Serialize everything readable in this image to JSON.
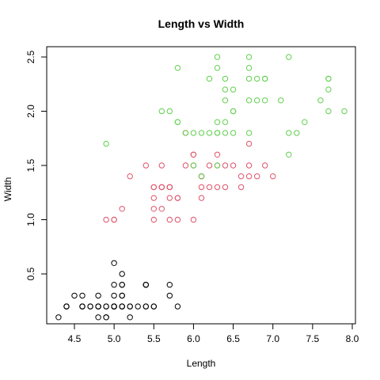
{
  "chart_data": {
    "type": "scatter",
    "title": "Length vs Width",
    "xlabel": "Length",
    "ylabel": "Width",
    "xlim": [
      4.3,
      7.9
    ],
    "ylim": [
      0.1,
      2.5
    ],
    "x_ticks": [
      "4.5",
      "5.0",
      "5.5",
      "6.0",
      "6.5",
      "7.0",
      "7.5",
      "8.0"
    ],
    "y_ticks": [
      "0.5",
      "1.0",
      "1.5",
      "2.0",
      "2.5"
    ],
    "grid": false,
    "marker": "open-circle",
    "series": [
      {
        "color": "#000000",
        "points": [
          [
            5.1,
            0.2
          ],
          [
            4.9,
            0.2
          ],
          [
            4.7,
            0.2
          ],
          [
            4.6,
            0.2
          ],
          [
            5.0,
            0.2
          ],
          [
            5.4,
            0.4
          ],
          [
            4.6,
            0.3
          ],
          [
            5.0,
            0.2
          ],
          [
            4.4,
            0.2
          ],
          [
            4.9,
            0.1
          ],
          [
            5.4,
            0.2
          ],
          [
            4.8,
            0.2
          ],
          [
            4.8,
            0.1
          ],
          [
            4.3,
            0.1
          ],
          [
            5.8,
            0.2
          ],
          [
            5.7,
            0.4
          ],
          [
            5.4,
            0.4
          ],
          [
            5.1,
            0.3
          ],
          [
            5.7,
            0.3
          ],
          [
            5.1,
            0.3
          ],
          [
            5.4,
            0.2
          ],
          [
            5.1,
            0.4
          ],
          [
            4.6,
            0.2
          ],
          [
            5.1,
            0.5
          ],
          [
            4.8,
            0.2
          ],
          [
            5.0,
            0.2
          ],
          [
            5.0,
            0.4
          ],
          [
            5.2,
            0.2
          ],
          [
            5.2,
            0.2
          ],
          [
            4.7,
            0.2
          ],
          [
            4.8,
            0.2
          ],
          [
            5.4,
            0.4
          ],
          [
            5.2,
            0.1
          ],
          [
            5.5,
            0.2
          ],
          [
            4.9,
            0.2
          ],
          [
            5.0,
            0.2
          ],
          [
            5.5,
            0.2
          ],
          [
            4.9,
            0.1
          ],
          [
            4.4,
            0.2
          ],
          [
            5.1,
            0.2
          ],
          [
            5.0,
            0.3
          ],
          [
            4.5,
            0.3
          ],
          [
            4.4,
            0.2
          ],
          [
            5.0,
            0.6
          ],
          [
            5.1,
            0.4
          ],
          [
            4.8,
            0.3
          ],
          [
            5.1,
            0.2
          ],
          [
            4.6,
            0.2
          ],
          [
            5.3,
            0.2
          ],
          [
            5.0,
            0.2
          ]
        ]
      },
      {
        "color": "#DF536B",
        "points": [
          [
            7.0,
            1.4
          ],
          [
            6.4,
            1.5
          ],
          [
            6.9,
            1.5
          ],
          [
            5.5,
            1.3
          ],
          [
            6.5,
            1.5
          ],
          [
            5.7,
            1.3
          ],
          [
            6.3,
            1.6
          ],
          [
            4.9,
            1.0
          ],
          [
            6.6,
            1.3
          ],
          [
            5.2,
            1.4
          ],
          [
            5.0,
            1.0
          ],
          [
            5.9,
            1.5
          ],
          [
            6.0,
            1.0
          ],
          [
            6.1,
            1.4
          ],
          [
            5.6,
            1.3
          ],
          [
            6.7,
            1.4
          ],
          [
            5.6,
            1.5
          ],
          [
            5.8,
            1.0
          ],
          [
            6.2,
            1.5
          ],
          [
            5.6,
            1.1
          ],
          [
            5.9,
            1.8
          ],
          [
            6.1,
            1.3
          ],
          [
            6.3,
            1.5
          ],
          [
            6.1,
            1.2
          ],
          [
            6.4,
            1.3
          ],
          [
            6.6,
            1.4
          ],
          [
            6.8,
            1.4
          ],
          [
            6.7,
            1.7
          ],
          [
            6.0,
            1.5
          ],
          [
            5.7,
            1.0
          ],
          [
            5.5,
            1.1
          ],
          [
            5.5,
            1.0
          ],
          [
            5.8,
            1.2
          ],
          [
            6.0,
            1.6
          ],
          [
            5.4,
            1.5
          ],
          [
            6.0,
            1.6
          ],
          [
            6.7,
            1.5
          ],
          [
            6.3,
            1.3
          ],
          [
            5.6,
            1.3
          ],
          [
            5.5,
            1.3
          ],
          [
            5.5,
            1.2
          ],
          [
            6.1,
            1.4
          ],
          [
            5.8,
            1.2
          ],
          [
            5.0,
            1.0
          ],
          [
            5.6,
            1.3
          ],
          [
            5.7,
            1.2
          ],
          [
            5.7,
            1.3
          ],
          [
            6.2,
            1.3
          ],
          [
            5.1,
            1.1
          ],
          [
            5.7,
            1.3
          ]
        ]
      },
      {
        "color": "#61D04F",
        "points": [
          [
            6.3,
            2.5
          ],
          [
            5.8,
            1.9
          ],
          [
            7.1,
            2.1
          ],
          [
            6.3,
            1.8
          ],
          [
            6.5,
            2.2
          ],
          [
            7.6,
            2.1
          ],
          [
            4.9,
            1.7
          ],
          [
            7.3,
            1.8
          ],
          [
            6.7,
            1.8
          ],
          [
            7.2,
            2.5
          ],
          [
            6.5,
            2.0
          ],
          [
            6.4,
            1.9
          ],
          [
            6.8,
            2.1
          ],
          [
            5.7,
            2.0
          ],
          [
            5.8,
            2.4
          ],
          [
            6.4,
            2.3
          ],
          [
            6.5,
            1.8
          ],
          [
            7.7,
            2.2
          ],
          [
            7.7,
            2.3
          ],
          [
            6.0,
            1.5
          ],
          [
            6.9,
            2.3
          ],
          [
            5.6,
            2.0
          ],
          [
            7.7,
            2.0
          ],
          [
            6.3,
            1.8
          ],
          [
            6.7,
            2.1
          ],
          [
            7.2,
            1.8
          ],
          [
            6.2,
            1.8
          ],
          [
            6.1,
            1.8
          ],
          [
            6.4,
            2.1
          ],
          [
            7.2,
            1.6
          ],
          [
            7.4,
            1.9
          ],
          [
            7.9,
            2.0
          ],
          [
            6.4,
            2.2
          ],
          [
            6.3,
            1.5
          ],
          [
            6.1,
            1.4
          ],
          [
            7.7,
            2.3
          ],
          [
            6.3,
            2.4
          ],
          [
            6.4,
            1.8
          ],
          [
            6.0,
            1.8
          ],
          [
            6.9,
            2.1
          ],
          [
            6.7,
            2.4
          ],
          [
            6.9,
            2.3
          ],
          [
            5.8,
            1.9
          ],
          [
            6.8,
            2.3
          ],
          [
            6.7,
            2.5
          ],
          [
            6.7,
            2.3
          ],
          [
            6.3,
            1.9
          ],
          [
            6.5,
            2.0
          ],
          [
            6.2,
            2.3
          ],
          [
            5.9,
            1.8
          ]
        ]
      }
    ]
  }
}
